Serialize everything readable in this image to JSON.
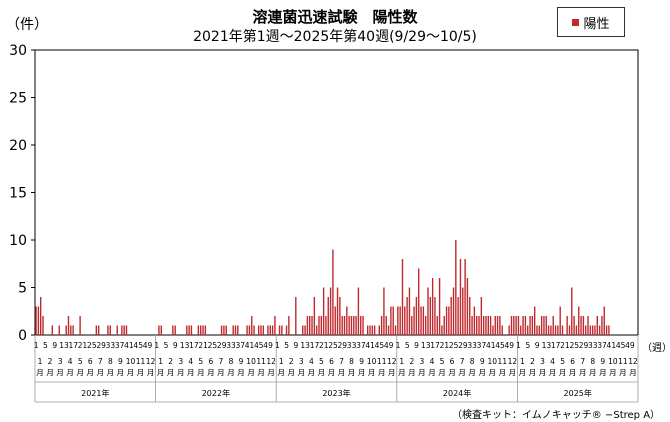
{
  "chart_data": {
    "type": "bar",
    "title": "溶連菌迅速試験　陽性数",
    "subtitle": "2021年第1週～2025年第40週(9/29～10/5)",
    "ylabel": "（件）",
    "xunit": "（週）",
    "ylim": [
      0,
      30
    ],
    "yticks": [
      0,
      5,
      10,
      15,
      20,
      25,
      30
    ],
    "grid": false,
    "legend_position": "top-right",
    "series": [
      {
        "name": "陽性",
        "color": "#c0282d",
        "years": [
          {
            "year": "2021年",
            "values": [
              3,
              3,
              4,
              2,
              0,
              0,
              0,
              1,
              0,
              0,
              1,
              0,
              0,
              1,
              2,
              1,
              1,
              0,
              0,
              2,
              0,
              0,
              0,
              0,
              0,
              0,
              1,
              1,
              0,
              0,
              0,
              1,
              1,
              0,
              0,
              1,
              0,
              1,
              1,
              1,
              0,
              0,
              0,
              0,
              0,
              0,
              0,
              0,
              0,
              0,
              0,
              0
            ]
          },
          {
            "year": "2022年",
            "values": [
              0,
              1,
              1,
              0,
              0,
              0,
              0,
              1,
              1,
              0,
              0,
              0,
              0,
              1,
              1,
              1,
              0,
              0,
              1,
              1,
              1,
              1,
              0,
              0,
              0,
              0,
              0,
              0,
              1,
              1,
              1,
              0,
              0,
              1,
              1,
              1,
              0,
              0,
              0,
              1,
              1,
              2,
              1,
              0,
              1,
              1,
              1,
              0,
              1,
              1,
              1,
              2
            ]
          },
          {
            "year": "2023年",
            "values": [
              0,
              1,
              1,
              0,
              1,
              2,
              0,
              0,
              4,
              0,
              0,
              1,
              1,
              2,
              2,
              2,
              4,
              1,
              2,
              2,
              5,
              2,
              4,
              5,
              9,
              3,
              5,
              4,
              2,
              2,
              3,
              2,
              2,
              2,
              2,
              5,
              2,
              2,
              0,
              1,
              1,
              1,
              1,
              0,
              1,
              2,
              5,
              2,
              1,
              3,
              3,
              1
            ]
          },
          {
            "year": "2024年",
            "values": [
              3,
              3,
              8,
              3,
              4,
              5,
              2,
              3,
              4,
              7,
              3,
              3,
              2,
              5,
              4,
              6,
              4,
              2,
              6,
              1,
              2,
              3,
              3,
              4,
              5,
              10,
              4,
              8,
              5,
              8,
              6,
              4,
              2,
              3,
              2,
              2,
              4,
              2,
              2,
              2,
              2,
              1,
              2,
              2,
              2,
              1,
              0,
              0,
              1,
              2,
              2,
              2
            ]
          },
          {
            "year": "2025年",
            "values": [
              2,
              1,
              2,
              2,
              1,
              2,
              2,
              3,
              1,
              1,
              2,
              2,
              2,
              1,
              1,
              2,
              1,
              1,
              3,
              1,
              0,
              2,
              1,
              5,
              2,
              1,
              3,
              2,
              2,
              1,
              2,
              1,
              1,
              1,
              2,
              1,
              2,
              3,
              1,
              1,
              0,
              0,
              0,
              0,
              0,
              0,
              0,
              0,
              0,
              0,
              0,
              0
            ]
          }
        ]
      }
    ],
    "month_labels": [
      "1",
      "2",
      "3",
      "4",
      "5",
      "6",
      "7",
      "8",
      "9",
      "10",
      "11",
      "12"
    ],
    "month_suffix": "月",
    "week_tick_labels": [
      "1",
      "5",
      "9",
      "13",
      "17",
      "21",
      "25",
      "29",
      "33",
      "37",
      "41",
      "45",
      "49"
    ]
  },
  "footnote": "（検査キット：イムノキャッチ® −Strep A）"
}
